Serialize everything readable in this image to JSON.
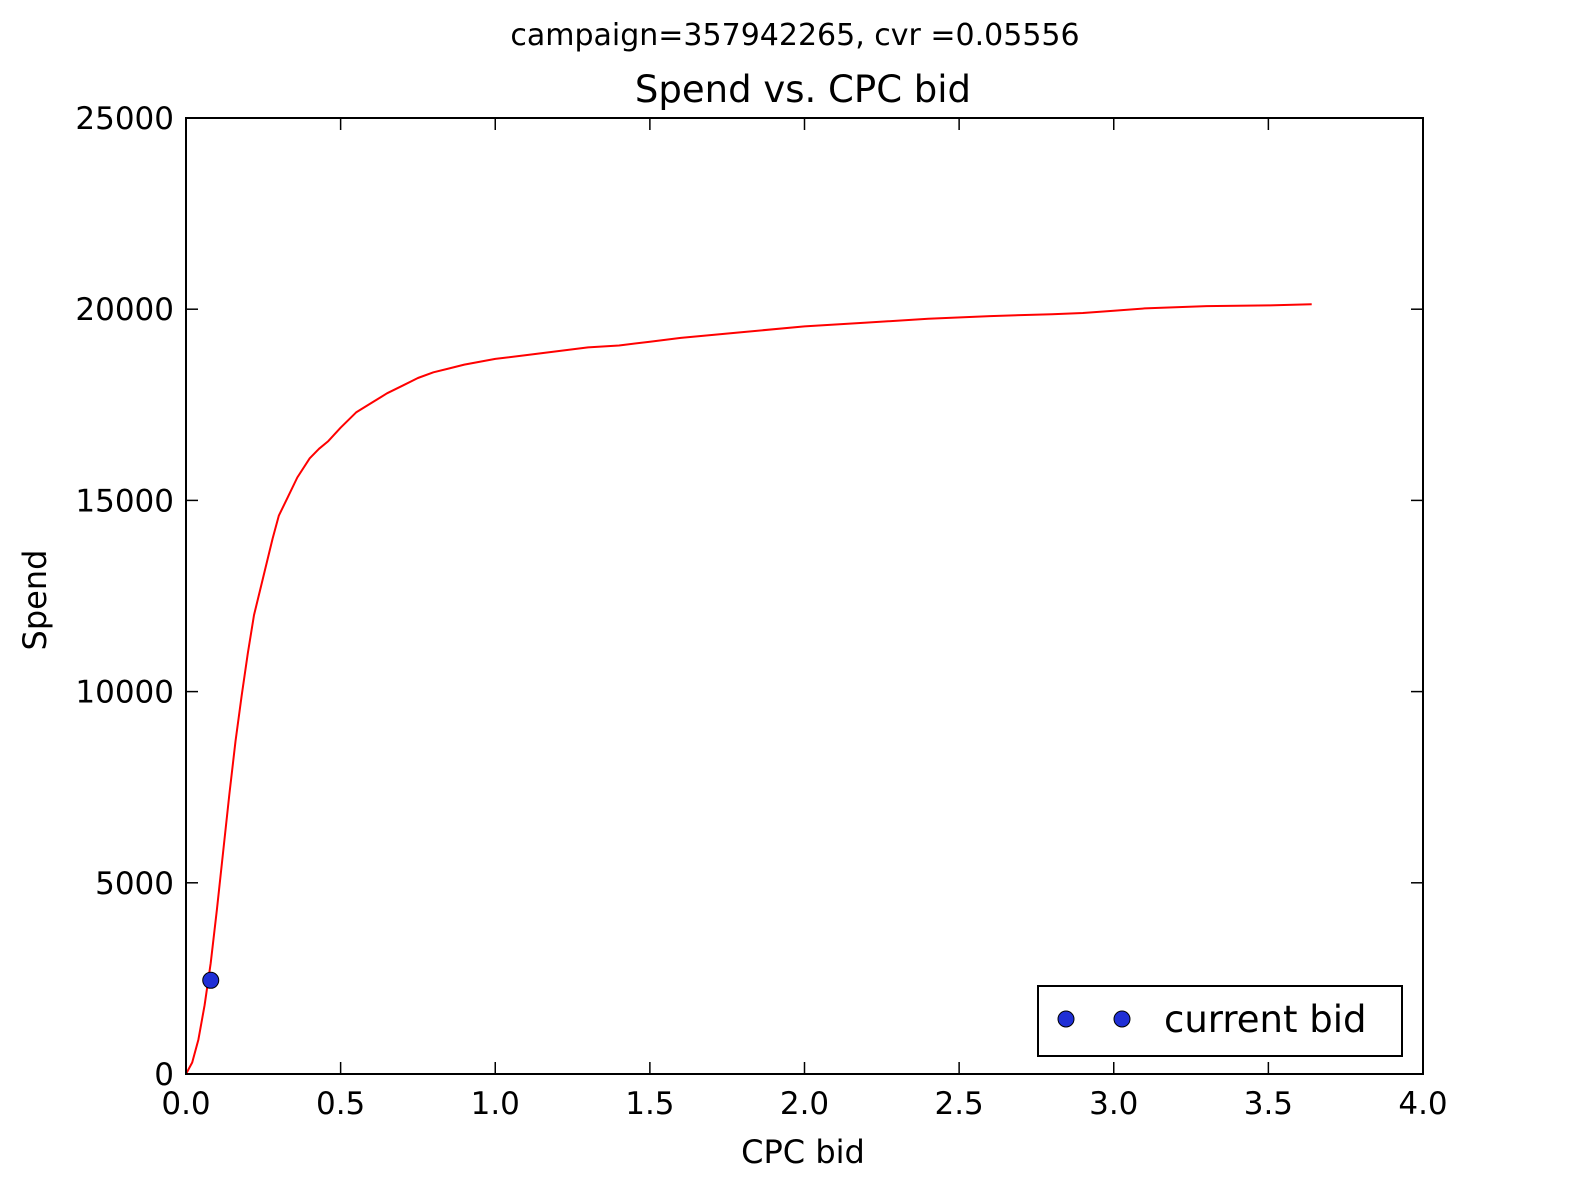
{
  "chart_data": {
    "type": "line",
    "suptitle": "campaign=357942265, cvr =0.05556",
    "title": "Spend vs. CPC bid",
    "xlabel": "CPC bid",
    "ylabel": "Spend",
    "xlim": [
      0.0,
      4.0
    ],
    "ylim": [
      0,
      25000
    ],
    "x_ticks": [
      "0.0",
      "0.5",
      "1.0",
      "1.5",
      "2.0",
      "2.5",
      "3.0",
      "3.5",
      "4.0"
    ],
    "y_ticks": [
      "0",
      "5000",
      "10000",
      "15000",
      "20000",
      "25000"
    ],
    "grid": false,
    "legend_position": "lower-right",
    "legend": [
      "current bid"
    ],
    "series": [
      {
        "type": "line",
        "color": "#ff0000",
        "x": [
          0.0,
          0.02,
          0.04,
          0.06,
          0.08,
          0.1,
          0.12,
          0.14,
          0.16,
          0.18,
          0.2,
          0.22,
          0.25,
          0.28,
          0.3,
          0.33,
          0.36,
          0.4,
          0.43,
          0.46,
          0.5,
          0.55,
          0.6,
          0.65,
          0.7,
          0.75,
          0.8,
          0.85,
          0.9,
          1.0,
          1.1,
          1.2,
          1.3,
          1.4,
          1.5,
          1.6,
          1.8,
          2.0,
          2.2,
          2.4,
          2.6,
          2.8,
          2.9,
          3.0,
          3.1,
          3.2,
          3.3,
          3.4,
          3.5,
          3.64
        ],
        "y": [
          0,
          300,
          900,
          1800,
          2900,
          4300,
          5800,
          7300,
          8700,
          9900,
          11000,
          12000,
          13000,
          14000,
          14600,
          15100,
          15600,
          16100,
          16350,
          16550,
          16900,
          17300,
          17550,
          17800,
          18000,
          18200,
          18350,
          18450,
          18550,
          18700,
          18800,
          18900,
          19000,
          19050,
          19150,
          19250,
          19400,
          19550,
          19650,
          19750,
          19820,
          19870,
          19900,
          19960,
          20020,
          20050,
          20080,
          20090,
          20100,
          20130
        ]
      },
      {
        "type": "scatter",
        "name": "current bid",
        "color": "#1f2fd6",
        "x": [
          0.08
        ],
        "y": [
          2450
        ]
      }
    ]
  }
}
